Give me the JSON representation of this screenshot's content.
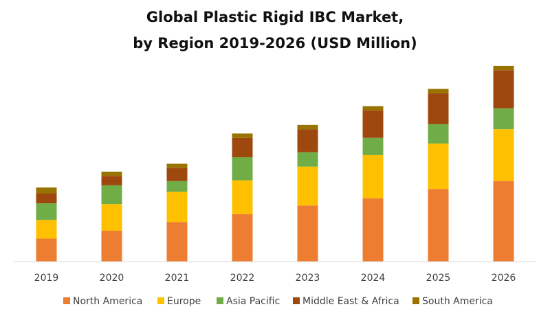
{
  "chart_data": {
    "type": "bar",
    "stacked": true,
    "title_lines": [
      "Global Plastic Rigid IBC Market,",
      "by Region 2019-2026 (USD Million)"
    ],
    "xlabel": "",
    "ylabel": "",
    "y_axis_visible": false,
    "grid": false,
    "legend_position": "bottom",
    "ylim": [
      0,
      270
    ],
    "categories": [
      "2019",
      "2020",
      "2021",
      "2022",
      "2023",
      "2024",
      "2025",
      "2026"
    ],
    "series": [
      {
        "name": "North America",
        "color": "#ED7D31",
        "values": [
          32,
          43,
          55,
          66,
          78,
          88,
          101,
          112
        ]
      },
      {
        "name": "Europe",
        "color": "#FFC000",
        "values": [
          26,
          37,
          42,
          47,
          54,
          60,
          63,
          72
        ]
      },
      {
        "name": "Asia Pacific",
        "color": "#70AD47",
        "values": [
          23,
          26,
          15,
          32,
          20,
          24,
          27,
          29
        ]
      },
      {
        "name": "Middle East & Africa",
        "color": "#9E480E",
        "values": [
          14,
          13,
          18,
          27,
          32,
          38,
          43,
          53
        ]
      },
      {
        "name": "South America",
        "color": "#997300",
        "values": [
          8,
          6,
          6,
          6,
          6,
          6,
          6,
          6
        ]
      }
    ]
  }
}
